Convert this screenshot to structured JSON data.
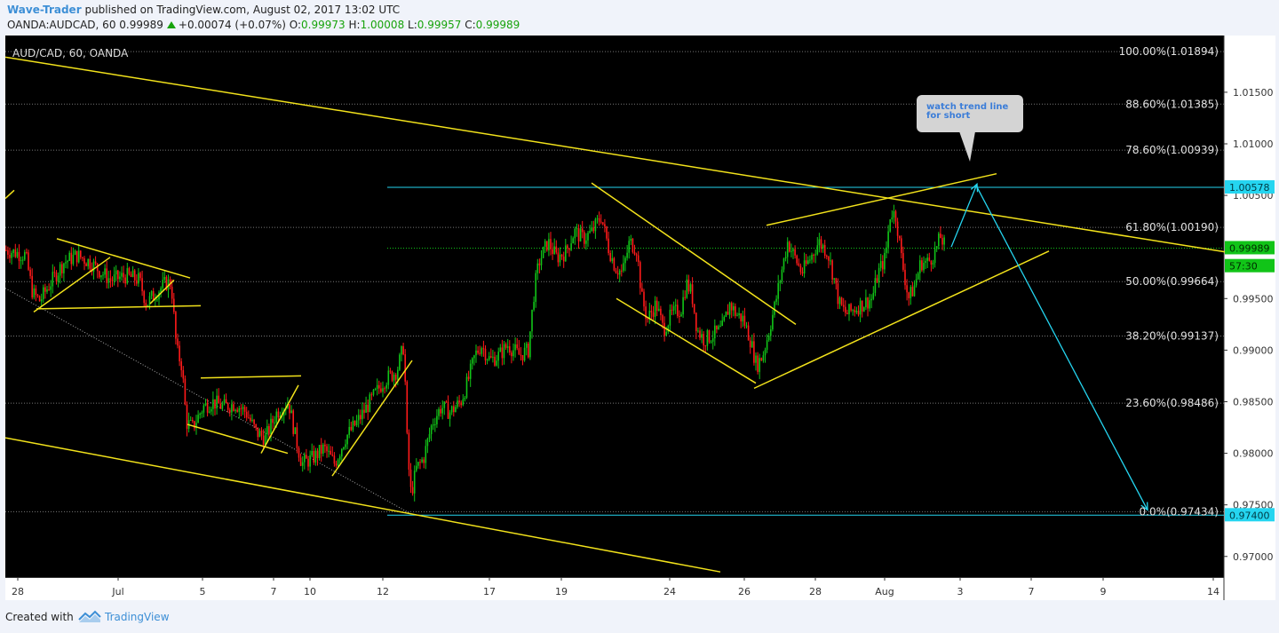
{
  "header": {
    "author": "Wave-Trader",
    "published_text": "published on TradingView.com, August 02, 2017 13:02 UTC",
    "symbol": "OANDA:AUDCAD, 60",
    "last": "0.99989",
    "change": "+0.00074 (+0.07%)",
    "open_label": "O:",
    "open": "0.99973",
    "high_label": "H:",
    "high": "1.00008",
    "low_label": "L:",
    "low": "0.99957",
    "close_label": "C:",
    "close": "0.99989"
  },
  "footer": {
    "created_with": "Created with",
    "brand": "TradingView"
  },
  "annotation": {
    "text": "watch trend line\nfor short"
  },
  "colors": {
    "background": "#000000",
    "up_candle": "#11c418",
    "down_candle": "#ff1a1a",
    "trendline": "#f2e21b",
    "projection": "#25d5f0",
    "fib_grid": "#777777",
    "price_green": "#11c418"
  },
  "chart_data": {
    "type": "candlestick",
    "title": "AUD/CAD, 60, OANDA",
    "ylim": [
      0.968,
      1.0205
    ],
    "y_ticks": [
      "1.01500",
      "1.01000",
      "1.00500",
      "0.99500",
      "0.99000",
      "0.98500",
      "0.98000",
      "0.97500",
      "0.97000"
    ],
    "x_ticks": [
      "28",
      "Jul",
      "5",
      "7",
      "10",
      "12",
      "17",
      "19",
      "24",
      "26",
      "28",
      "Aug",
      "3",
      "7",
      "9",
      "14"
    ],
    "fib_levels": [
      {
        "label": "100.00%(1.01894)",
        "value": 1.01894
      },
      {
        "label": "88.60%(1.01385)",
        "value": 1.01385
      },
      {
        "label": "78.60%(1.00939)",
        "value": 1.00939
      },
      {
        "label": "61.80%(1.00190)",
        "value": 1.0019
      },
      {
        "label": "50.00%(0.99664)",
        "value": 0.99664
      },
      {
        "label": "38.20%(0.99137)",
        "value": 0.99137
      },
      {
        "label": "23.60%(0.98486)",
        "value": 0.98486
      },
      {
        "label": "0.0%(0.97434)",
        "value": 0.97434
      }
    ],
    "price_markers": [
      {
        "label": "1.00578",
        "value": 1.00578,
        "color": "#25d5f0"
      },
      {
        "label": "0.99989",
        "value": 0.99989,
        "color": "#11c418"
      },
      {
        "label": "57:30",
        "value": 0.99815,
        "color": "#11c418"
      },
      {
        "label": "0.97400",
        "value": 0.974,
        "color": "#25d5f0"
      }
    ],
    "horizontal_lines": [
      {
        "value": 1.00578,
        "color": "#25d5f0"
      },
      {
        "value": 0.99989,
        "color": "#11c418"
      },
      {
        "value": 0.974,
        "color": "#25d5f0"
      }
    ],
    "price_path": [
      {
        "x": 0,
        "y": 0.9997
      },
      {
        "x": 22,
        "y": 0.9992
      },
      {
        "x": 30,
        "y": 0.9955
      },
      {
        "x": 38,
        "y": 0.9948
      },
      {
        "x": 50,
        "y": 0.9965
      },
      {
        "x": 65,
        "y": 0.9985
      },
      {
        "x": 80,
        "y": 0.9992
      },
      {
        "x": 95,
        "y": 0.9985
      },
      {
        "x": 108,
        "y": 0.9975
      },
      {
        "x": 118,
        "y": 0.9968
      },
      {
        "x": 135,
        "y": 0.9972
      },
      {
        "x": 150,
        "y": 0.9968
      },
      {
        "x": 158,
        "y": 0.9945
      },
      {
        "x": 168,
        "y": 0.9955
      },
      {
        "x": 180,
        "y": 0.9965
      },
      {
        "x": 186,
        "y": 0.9965
      },
      {
        "x": 192,
        "y": 0.99
      },
      {
        "x": 198,
        "y": 0.9885
      },
      {
        "x": 203,
        "y": 0.983
      },
      {
        "x": 210,
        "y": 0.9825
      },
      {
        "x": 222,
        "y": 0.9845
      },
      {
        "x": 232,
        "y": 0.985
      },
      {
        "x": 245,
        "y": 0.9845
      },
      {
        "x": 258,
        "y": 0.9848
      },
      {
        "x": 270,
        "y": 0.984
      },
      {
        "x": 282,
        "y": 0.982
      },
      {
        "x": 292,
        "y": 0.9815
      },
      {
        "x": 305,
        "y": 0.984
      },
      {
        "x": 318,
        "y": 0.985
      },
      {
        "x": 326,
        "y": 0.9815
      },
      {
        "x": 333,
        "y": 0.979
      },
      {
        "x": 345,
        "y": 0.9795
      },
      {
        "x": 358,
        "y": 0.9805
      },
      {
        "x": 370,
        "y": 0.979
      },
      {
        "x": 382,
        "y": 0.9815
      },
      {
        "x": 395,
        "y": 0.983
      },
      {
        "x": 410,
        "y": 0.985
      },
      {
        "x": 425,
        "y": 0.987
      },
      {
        "x": 440,
        "y": 0.988
      },
      {
        "x": 448,
        "y": 0.9905
      },
      {
        "x": 452,
        "y": 0.98
      },
      {
        "x": 456,
        "y": 0.976
      },
      {
        "x": 462,
        "y": 0.9785
      },
      {
        "x": 470,
        "y": 0.9795
      },
      {
        "x": 480,
        "y": 0.983
      },
      {
        "x": 490,
        "y": 0.9845
      },
      {
        "x": 500,
        "y": 0.984
      },
      {
        "x": 512,
        "y": 0.985
      },
      {
        "x": 520,
        "y": 0.987
      },
      {
        "x": 528,
        "y": 0.9895
      },
      {
        "x": 535,
        "y": 0.9905
      },
      {
        "x": 545,
        "y": 0.989
      },
      {
        "x": 555,
        "y": 0.9895
      },
      {
        "x": 565,
        "y": 0.9905
      },
      {
        "x": 578,
        "y": 0.9895
      },
      {
        "x": 588,
        "y": 0.99
      },
      {
        "x": 595,
        "y": 0.996
      },
      {
        "x": 600,
        "y": 0.9985
      },
      {
        "x": 610,
        "y": 1.0005
      },
      {
        "x": 620,
        "y": 0.999
      },
      {
        "x": 630,
        "y": 0.9995
      },
      {
        "x": 640,
        "y": 1.0015
      },
      {
        "x": 650,
        "y": 1.0008
      },
      {
        "x": 660,
        "y": 1.0015
      },
      {
        "x": 670,
        "y": 1.003
      },
      {
        "x": 678,
        "y": 1.0
      },
      {
        "x": 686,
        "y": 0.998
      },
      {
        "x": 694,
        "y": 0.9975
      },
      {
        "x": 702,
        "y": 1.0005
      },
      {
        "x": 710,
        "y": 0.9998
      },
      {
        "x": 716,
        "y": 0.995
      },
      {
        "x": 722,
        "y": 0.993
      },
      {
        "x": 732,
        "y": 0.9945
      },
      {
        "x": 740,
        "y": 0.992
      },
      {
        "x": 750,
        "y": 0.9935
      },
      {
        "x": 760,
        "y": 0.994
      },
      {
        "x": 766,
        "y": 0.9965
      },
      {
        "x": 772,
        "y": 0.9955
      },
      {
        "x": 778,
        "y": 0.992
      },
      {
        "x": 786,
        "y": 0.991
      },
      {
        "x": 796,
        "y": 0.9915
      },
      {
        "x": 806,
        "y": 0.992
      },
      {
        "x": 815,
        "y": 0.9945
      },
      {
        "x": 822,
        "y": 0.9935
      },
      {
        "x": 830,
        "y": 0.993
      },
      {
        "x": 838,
        "y": 0.991
      },
      {
        "x": 845,
        "y": 0.9885
      },
      {
        "x": 852,
        "y": 0.9895
      },
      {
        "x": 858,
        "y": 0.9915
      },
      {
        "x": 866,
        "y": 0.9945
      },
      {
        "x": 874,
        "y": 0.998
      },
      {
        "x": 880,
        "y": 1.0005
      },
      {
        "x": 888,
        "y": 0.999
      },
      {
        "x": 896,
        "y": 0.9975
      },
      {
        "x": 906,
        "y": 0.999
      },
      {
        "x": 915,
        "y": 1.0005
      },
      {
        "x": 925,
        "y": 0.9995
      },
      {
        "x": 932,
        "y": 0.997
      },
      {
        "x": 938,
        "y": 0.9945
      },
      {
        "x": 946,
        "y": 0.9935
      },
      {
        "x": 955,
        "y": 0.994
      },
      {
        "x": 965,
        "y": 0.9945
      },
      {
        "x": 975,
        "y": 0.995
      },
      {
        "x": 982,
        "y": 0.9975
      },
      {
        "x": 990,
        "y": 0.999
      },
      {
        "x": 996,
        "y": 1.0035
      },
      {
        "x": 1002,
        "y": 1.003
      },
      {
        "x": 1008,
        "y": 0.999
      },
      {
        "x": 1016,
        "y": 0.995
      },
      {
        "x": 1022,
        "y": 0.996
      },
      {
        "x": 1030,
        "y": 0.9985
      },
      {
        "x": 1038,
        "y": 0.9985
      },
      {
        "x": 1046,
        "y": 0.9995
      },
      {
        "x": 1052,
        "y": 1.001
      },
      {
        "x": 1058,
        "y": 0.9999
      }
    ],
    "trend_lines": [
      {
        "x1": 0,
        "y1": 1.0184,
        "x2": 1375,
        "y2": 0.9995,
        "color": "#f2e21b"
      },
      {
        "x1": 0,
        "y1": 0.9815,
        "x2": 805,
        "y2": 0.9685,
        "color": "#f2e21b"
      },
      {
        "x1": 0,
        "y1": 1.0047,
        "x2": 10,
        "y2": 1.0055,
        "color": "#f2e21b"
      },
      {
        "x1": 58,
        "y1": 1.0008,
        "x2": 208,
        "y2": 0.997,
        "color": "#f2e21b"
      },
      {
        "x1": 35,
        "y1": 0.994,
        "x2": 220,
        "y2": 0.9943,
        "color": "#f2e21b"
      },
      {
        "x1": 32,
        "y1": 0.9937,
        "x2": 118,
        "y2": 0.999,
        "color": "#f2e21b"
      },
      {
        "x1": 163,
        "y1": 0.9945,
        "x2": 190,
        "y2": 0.9968,
        "color": "#f2e21b"
      },
      {
        "x1": 220,
        "y1": 0.9873,
        "x2": 333,
        "y2": 0.9875,
        "color": "#f2e21b"
      },
      {
        "x1": 205,
        "y1": 0.9828,
        "x2": 318,
        "y2": 0.98,
        "color": "#f2e21b"
      },
      {
        "x1": 288,
        "y1": 0.98,
        "x2": 330,
        "y2": 0.9866,
        "color": "#f2e21b"
      },
      {
        "x1": 368,
        "y1": 0.9778,
        "x2": 458,
        "y2": 0.989,
        "color": "#f2e21b"
      },
      {
        "x1": 660,
        "y1": 1.0062,
        "x2": 890,
        "y2": 0.9925,
        "color": "#f2e21b"
      },
      {
        "x1": 688,
        "y1": 0.995,
        "x2": 845,
        "y2": 0.9868,
        "color": "#f2e21b"
      },
      {
        "x1": 843,
        "y1": 0.9863,
        "x2": 1175,
        "y2": 0.9996,
        "color": "#f2e21b"
      },
      {
        "x1": 857,
        "y1": 1.0021,
        "x2": 1116,
        "y2": 1.0071,
        "color": "#f2e21b"
      }
    ],
    "dotted_lines": [
      {
        "x1": 0,
        "y1": 0.996,
        "x2": 455,
        "y2": 0.9742,
        "color": "#aaaaaa"
      }
    ],
    "projection_arrows": [
      {
        "x1": 1065,
        "y1": 1.0,
        "x2": 1094,
        "y2": 1.0061,
        "color": "#25d5f0"
      },
      {
        "x1": 1094,
        "y1": 1.0058,
        "x2": 1286,
        "y2": 0.9745,
        "color": "#25d5f0"
      }
    ]
  }
}
